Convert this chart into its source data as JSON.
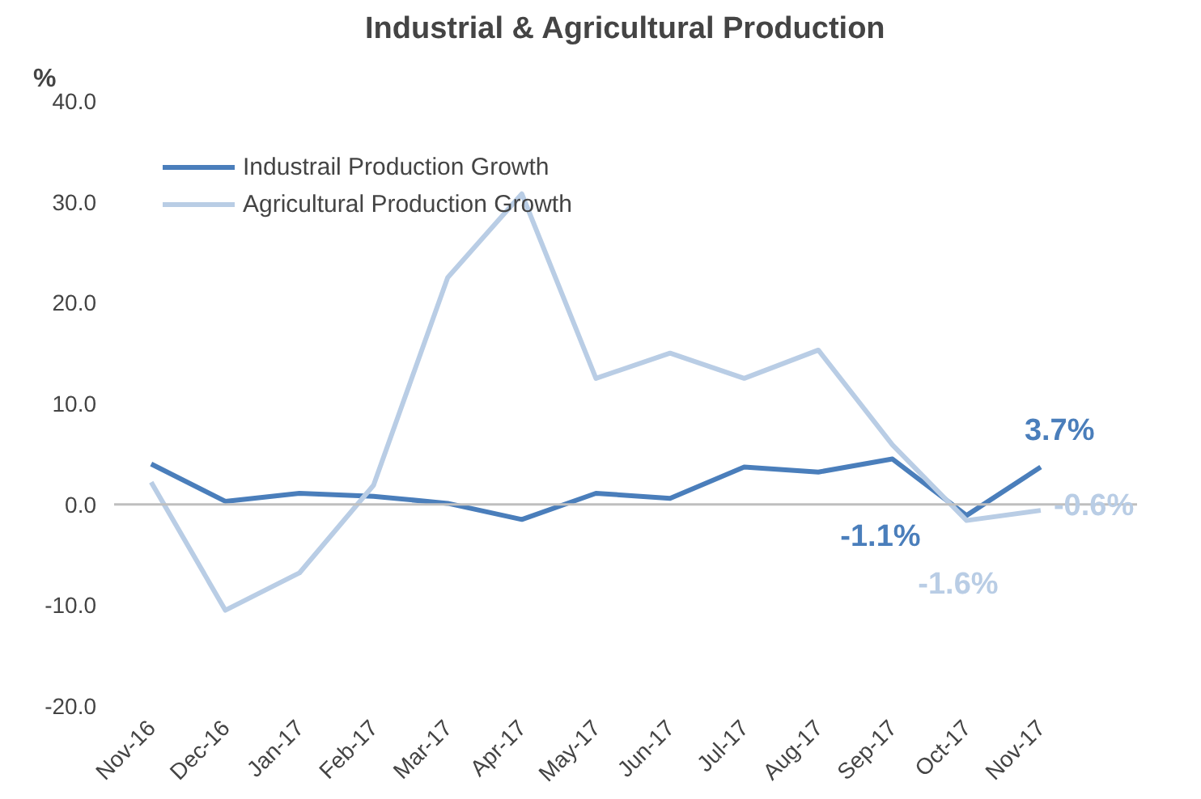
{
  "chart_data": {
    "type": "line",
    "title": "Industrial & Agricultural Production",
    "ylabel": "%",
    "categories": [
      "Nov-16",
      "Dec-16",
      "Jan-17",
      "Feb-17",
      "Mar-17",
      "Apr-17",
      "May-17",
      "Jun-17",
      "Jul-17",
      "Aug-17",
      "Sep-17",
      "Oct-17",
      "Nov-17"
    ],
    "series": [
      {
        "name": "Industrail Production Growth",
        "color": "#4a7ebb",
        "values": [
          4.0,
          0.3,
          1.1,
          0.8,
          0.1,
          -1.5,
          1.1,
          0.6,
          3.7,
          3.2,
          4.5,
          -1.1,
          3.7
        ],
        "value_labels": [
          null,
          null,
          null,
          null,
          null,
          null,
          null,
          null,
          null,
          null,
          null,
          "-1.1%",
          "3.7%"
        ]
      },
      {
        "name": "Agricultural Production Growth",
        "color": "#b9cde5",
        "values": [
          2.2,
          -10.5,
          -6.8,
          1.9,
          22.5,
          30.8,
          12.5,
          15.0,
          12.5,
          15.3,
          5.9,
          -1.6,
          -0.6
        ],
        "value_labels": [
          null,
          null,
          null,
          null,
          null,
          null,
          null,
          null,
          null,
          null,
          null,
          "-1.6%",
          "-0.6%"
        ]
      }
    ],
    "ylim": [
      -20,
      40
    ],
    "yticks": [
      {
        "value": -20,
        "label": "-20.0"
      },
      {
        "value": -10,
        "label": "-10.0"
      },
      {
        "value": 0,
        "label": "0.0"
      },
      {
        "value": 10,
        "label": "10.0"
      },
      {
        "value": 20,
        "label": "20.0"
      },
      {
        "value": 30,
        "label": "30.0"
      },
      {
        "value": 40,
        "label": "40.0"
      }
    ],
    "ref_lines": [
      {
        "axis": "y",
        "value": 0,
        "color": "#bfbfbf"
      }
    ],
    "grid": false,
    "legend": "top left",
    "marker": "none",
    "line_style": "solid"
  }
}
